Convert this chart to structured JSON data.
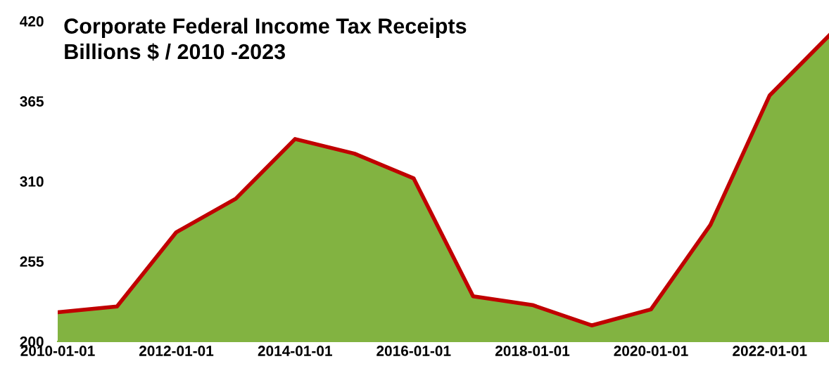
{
  "chart_data": {
    "type": "area",
    "title": "Corporate Federal Income Tax Receipts",
    "subtitle": "Billions $ / 2010 -2023",
    "x": [
      "2010-01-01",
      "2011-01-01",
      "2012-01-01",
      "2013-01-01",
      "2014-01-01",
      "2015-01-01",
      "2016-01-01",
      "2017-01-01",
      "2018-01-01",
      "2019-01-01",
      "2020-01-01",
      "2021-01-01",
      "2022-01-01",
      "2023-01-01"
    ],
    "series": [
      {
        "color": "#82b341",
        "values": [
          220,
          224,
          275,
          298,
          339,
          329,
          312,
          231,
          225,
          211,
          222,
          280,
          369,
          410
        ]
      },
      {
        "type": "line",
        "color": "#c00000",
        "values": [
          220,
          224,
          275,
          298,
          339,
          329,
          312,
          231,
          225,
          211,
          222,
          280,
          369,
          410
        ]
      }
    ],
    "xlim": [
      "2010-01-01",
      "2023-01-01"
    ],
    "ylim": [
      200,
      420
    ],
    "xticks": [
      {
        "value": "2010-01-01",
        "label": "2010-01-01"
      },
      {
        "value": "2012-01-01",
        "label": "2012-01-01"
      },
      {
        "value": "2014-01-01",
        "label": "2014-01-01"
      },
      {
        "value": "2016-01-01",
        "label": "2016-01-01"
      },
      {
        "value": "2018-01-01",
        "label": "2018-01-01"
      },
      {
        "value": "2020-01-01",
        "label": "2020-01-01"
      },
      {
        "value": "2022-01-01",
        "label": "2022-01-01"
      }
    ],
    "yticks": [
      200,
      255,
      310,
      365,
      420
    ],
    "grid": false,
    "legend": false
  }
}
